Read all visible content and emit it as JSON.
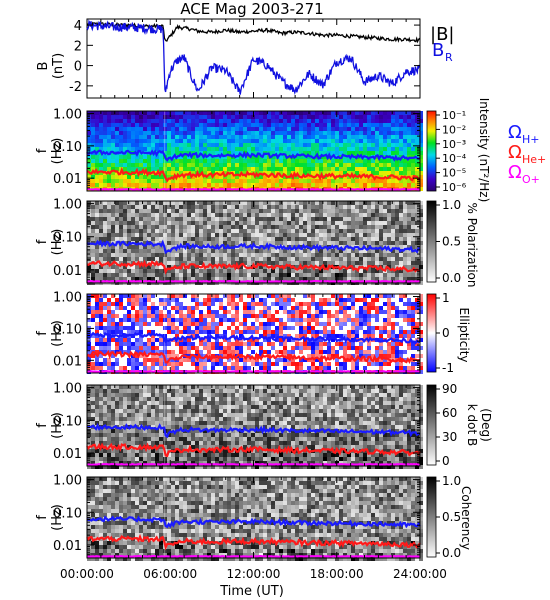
{
  "title": "ACE Mag 2003-271",
  "colors": {
    "b_total": "#000000",
    "b_r": "#1010e0",
    "omega_h": "#1a1aff",
    "omega_he": "#ff1a1a",
    "omega_o": "#ff00ff"
  },
  "chart_data": [
    {
      "type": "line",
      "panel": "B",
      "ylabel_top": "B",
      "ylabel_unit": "(nT)",
      "ylim": [
        -3.2,
        4.6
      ],
      "yticks": [
        "4",
        "2",
        "0",
        "-2"
      ],
      "ytick_values": [
        4,
        2,
        0,
        -2
      ],
      "xlim_hours": [
        0,
        24
      ],
      "series": [
        {
          "name": "|B|",
          "color": "#000000",
          "x": [
            0.0,
            1,
            2,
            3,
            4,
            5,
            5.5,
            5.6,
            6.0,
            6.5,
            7,
            7.5,
            8,
            9,
            10,
            11,
            12,
            13,
            14,
            15,
            16,
            17,
            18,
            19,
            20,
            21,
            22,
            23,
            24
          ],
          "values": [
            4.1,
            4.1,
            4.0,
            4.0,
            3.9,
            3.9,
            3.9,
            2.3,
            2.9,
            3.8,
            3.7,
            3.6,
            3.4,
            3.3,
            3.5,
            3.3,
            3.4,
            3.5,
            3.2,
            3.3,
            3.2,
            3.0,
            3.0,
            2.9,
            2.8,
            2.7,
            2.6,
            2.6,
            2.5
          ]
        },
        {
          "name": "BR",
          "color": "#1010e0",
          "x": [
            0.0,
            1,
            2,
            3,
            4,
            5,
            5.5,
            5.6,
            6.0,
            6.5,
            7,
            7.5,
            8,
            9,
            10,
            11,
            12,
            13,
            14,
            15,
            16,
            17,
            18,
            19,
            20,
            21,
            22,
            23,
            24
          ],
          "values": [
            4.0,
            3.9,
            3.8,
            3.8,
            3.7,
            3.6,
            3.6,
            -2.8,
            -0.5,
            0.5,
            0.8,
            -1.0,
            -2.5,
            -0.2,
            -0.5,
            -2.6,
            0.6,
            0.0,
            -1.5,
            -2.4,
            -0.8,
            -1.9,
            0.4,
            0.8,
            -1.6,
            -1.0,
            -1.8,
            -0.6,
            -0.4
          ]
        }
      ],
      "legend": [
        "|B|",
        "B",
        "R"
      ]
    },
    {
      "type": "heatmap",
      "panel": "Intensity",
      "ylabel_top": "f",
      "ylabel_unit": "(Hz)",
      "ylim_log": [
        0.004,
        1.2
      ],
      "yticks": [
        "1.00",
        "0.10",
        "0.01"
      ],
      "colorbar_label": "Intensity (nT²/Hz)",
      "colorbar_ticks": [
        "10⁻¹",
        "10⁻²",
        "10⁻³",
        "10⁻⁴",
        "10⁻⁵",
        "10⁻⁶"
      ],
      "colorbar_tick_values": [
        0.1,
        0.01,
        0.001,
        0.0001,
        1e-05,
        1e-06
      ],
      "legend": [
        "Ω",
        "H+",
        "Ω",
        "He+",
        "Ω",
        "O+"
      ]
    },
    {
      "type": "heatmap",
      "panel": "% Polarization",
      "ylabel_top": "f",
      "ylabel_unit": "(Hz)",
      "yticks": [
        "1.00",
        "0.10",
        "0.01"
      ],
      "colorbar_label": "% Polarization",
      "colorbar_ticks": [
        "1.0",
        "0.5",
        "0.0"
      ]
    },
    {
      "type": "heatmap",
      "panel": "Ellipticity",
      "ylabel_top": "f",
      "ylabel_unit": "(Hz)",
      "yticks": [
        "1.00",
        "0.10",
        "0.01"
      ],
      "colorbar_label": "Ellipticity",
      "colorbar_ticks": [
        "1",
        "0",
        "-1"
      ]
    },
    {
      "type": "heatmap",
      "panel": "k dot B",
      "ylabel_top": "f",
      "ylabel_unit": "(Hz)",
      "yticks": [
        "1.00",
        "0.10",
        "0.01"
      ],
      "colorbar_label": "k dot B",
      "colorbar_unit": "(Deg)",
      "colorbar_ticks": [
        "90",
        "60",
        "30",
        "0"
      ]
    },
    {
      "type": "heatmap",
      "panel": "Coherency",
      "ylabel_top": "f",
      "ylabel_unit": "(Hz)",
      "yticks": [
        "1.00",
        "0.10",
        "0.01"
      ],
      "colorbar_label": "Coherency",
      "colorbar_ticks": [
        "1.0",
        "0.5",
        "0.0"
      ],
      "xticks": [
        "00:00:00",
        "06:00:00",
        "12:00:00",
        "18:00:00",
        "24:00:00"
      ],
      "xtick_values_hours": [
        0,
        6,
        12,
        18,
        24
      ],
      "xlabel": "Time (UT)"
    }
  ],
  "gyrofrequency_lines": {
    "x_hours": [
      0,
      2,
      4,
      5.5,
      5.7,
      6.2,
      7,
      9,
      12,
      15,
      18,
      21,
      24
    ],
    "omega_h_hz": [
      0.062,
      0.062,
      0.061,
      0.06,
      0.035,
      0.045,
      0.052,
      0.05,
      0.052,
      0.048,
      0.046,
      0.044,
      0.04
    ],
    "omega_he_hz": [
      0.0155,
      0.0155,
      0.0152,
      0.015,
      0.009,
      0.011,
      0.013,
      0.0125,
      0.013,
      0.012,
      0.0115,
      0.011,
      0.01
    ],
    "omega_o_hz": [
      0.0045,
      0.0045,
      0.0045,
      0.0045,
      0.0045,
      0.0045,
      0.0045,
      0.0045,
      0.0045,
      0.0045,
      0.0045,
      0.0045,
      0.0045
    ]
  }
}
